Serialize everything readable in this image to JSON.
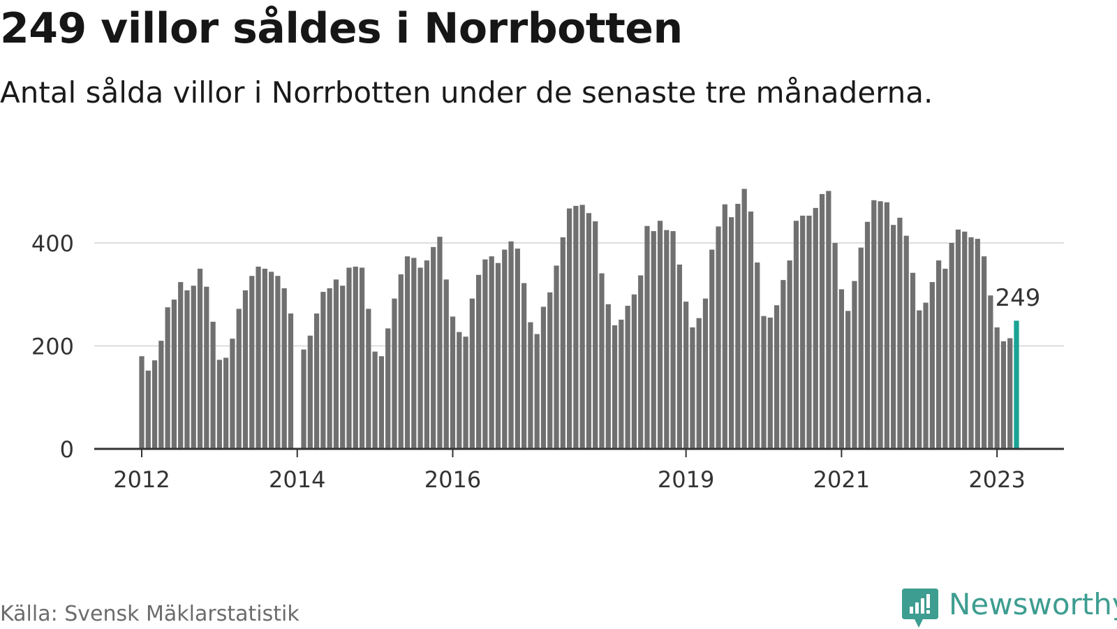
{
  "title": "249 villor såldes i Norrbotten",
  "subtitle": "Antal sålda villor i Norrbotten under de senaste tre månaderna.",
  "source": "Källa: Svensk Mäklarstatistik",
  "logo_text": "Newsworthy",
  "colors": {
    "bar": "#707070",
    "highlight": "#1aa394",
    "gridline": "#dddddd",
    "axis": "#333333",
    "brand": "#3d9d90"
  },
  "chart_data": {
    "type": "bar",
    "title": "249 villor såldes i Norrbotten",
    "subtitle": "Antal sålda villor i Norrbotten under de senaste tre månaderna.",
    "xlabel": "",
    "ylabel": "",
    "ylim": [
      0,
      520
    ],
    "yticks": [
      0,
      200,
      400
    ],
    "xticks": [
      {
        "label": "2012",
        "index": 0
      },
      {
        "label": "2014",
        "index": 24
      },
      {
        "label": "2016",
        "index": 48
      },
      {
        "label": "2019",
        "index": 84
      },
      {
        "label": "2021",
        "index": 108
      },
      {
        "label": "2023",
        "index": 132
      }
    ],
    "grid": true,
    "legend": "none",
    "highlight": {
      "index": 135,
      "label": "249",
      "value": 249
    },
    "series": [
      {
        "values": [
          180,
          152,
          172,
          210,
          275,
          290,
          324,
          308,
          317,
          350,
          315,
          247,
          173,
          177,
          214,
          272,
          308,
          336,
          354,
          350,
          344,
          336,
          312,
          263,
          null,
          193,
          220,
          263,
          305,
          312,
          329,
          317,
          352,
          354,
          352,
          272,
          189,
          180,
          234,
          292,
          339,
          374,
          371,
          352,
          366,
          392,
          412,
          329,
          257,
          227,
          218,
          292,
          338,
          368,
          374,
          361,
          387,
          403,
          389,
          322,
          246,
          223,
          276,
          304,
          356,
          411,
          467,
          472,
          474,
          458,
          442,
          341,
          281,
          240,
          251,
          278,
          300,
          337,
          433,
          423,
          443,
          425,
          423,
          358,
          286,
          236,
          254,
          292,
          387,
          432,
          475,
          450,
          476,
          505,
          461,
          362,
          258,
          255,
          279,
          328,
          366,
          443,
          453,
          453,
          468,
          495,
          501,
          400,
          310,
          268,
          326,
          391,
          441,
          483,
          481,
          479,
          435,
          449,
          414,
          342,
          269,
          284,
          324,
          366,
          350,
          400,
          426,
          422,
          411,
          408,
          374,
          298,
          236,
          209,
          215,
          249
        ]
      }
    ]
  }
}
